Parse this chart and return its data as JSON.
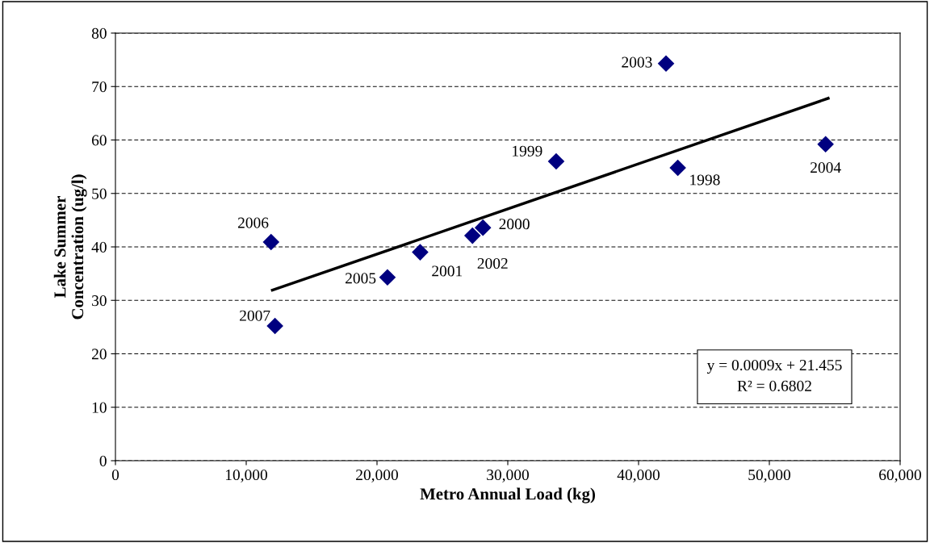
{
  "chart_data": {
    "type": "scatter",
    "xlabel": "Metro Annual Load (kg)",
    "ylabel": "Lake Summer\nConcentration (ug/l)",
    "xlim": [
      0,
      60000
    ],
    "xticks": [
      {
        "value": 0,
        "label": "0"
      },
      {
        "value": 10000,
        "label": "10,000"
      },
      {
        "value": 20000,
        "label": "20,000"
      },
      {
        "value": 30000,
        "label": "30,000"
      },
      {
        "value": 40000,
        "label": "40,000"
      },
      {
        "value": 50000,
        "label": "50,000"
      },
      {
        "value": 60000,
        "label": "60,000"
      }
    ],
    "ylim": [
      0,
      80
    ],
    "yticks": [
      0,
      10,
      20,
      30,
      40,
      50,
      60,
      70,
      80
    ],
    "grid": "y",
    "legend": false,
    "series": [
      {
        "marker": "diamond",
        "color": "#000080",
        "x": [
          43000,
          33700,
          28100,
          23300,
          27300,
          42100,
          54300,
          20800,
          11900,
          12200
        ],
        "values": [
          54.8,
          56,
          43.6,
          39,
          42.1,
          74.3,
          59.2,
          34.3,
          40.9,
          25.2
        ]
      },
      {
        "type": "line",
        "color": "#000000",
        "line_style": "solid",
        "x": [
          12000,
          54500
        ],
        "values": [
          31.9,
          67.8
        ]
      }
    ],
    "annotations": [
      {
        "text": "1998",
        "x": 43000,
        "y": 54.8
      },
      {
        "text": "1999",
        "x": 33700,
        "y": 56
      },
      {
        "text": "2000",
        "x": 28100,
        "y": 43.6
      },
      {
        "text": "2001",
        "x": 23300,
        "y": 39
      },
      {
        "text": "2002",
        "x": 27300,
        "y": 42.1
      },
      {
        "text": "2003",
        "x": 42100,
        "y": 74.3
      },
      {
        "text": "2004",
        "x": 54300,
        "y": 59.2
      },
      {
        "text": "2005",
        "x": 20800,
        "y": 34.3
      },
      {
        "text": "2006",
        "x": 11900,
        "y": 40.9
      },
      {
        "text": "2007",
        "x": 12200,
        "y": 25.2
      },
      "y = 0.0009x + 21.455\nR² = 0.6802"
    ]
  }
}
